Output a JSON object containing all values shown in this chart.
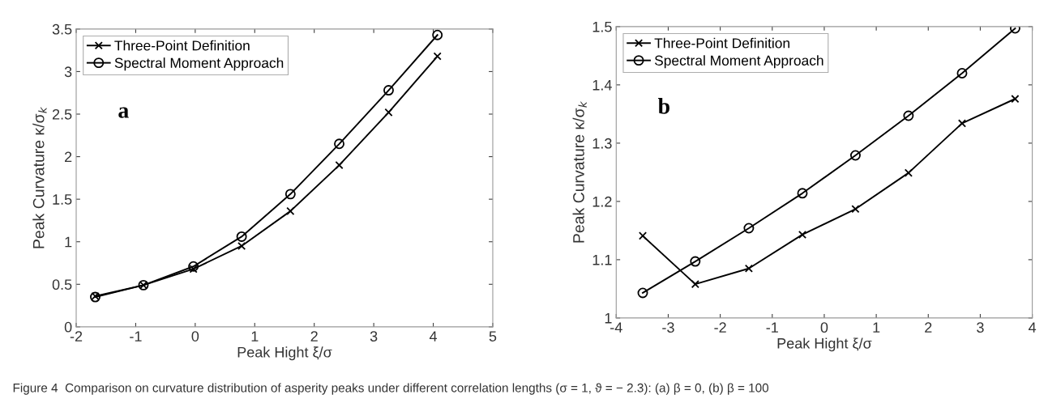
{
  "chart_data": [
    {
      "type": "line",
      "xlabel": "Peak Hight ξ/σ",
      "ylabel": "Peak Curvature κ/σ$_{k}$",
      "xlim": [
        -2,
        5
      ],
      "xticks": [
        -2,
        -1,
        0,
        1,
        2,
        3,
        4,
        5
      ],
      "ylim": [
        0,
        3.5
      ],
      "yticks": [
        0,
        0.5,
        1,
        1.5,
        2,
        2.5,
        3,
        3.5
      ],
      "grid": false,
      "legend": "top left",
      "line_style": "solid",
      "annotations": [
        "a",
        "Figure 4  Comparison on curvature distribution of asperity peaks under different correlation lengths (σ = 1, ϑ = − 2.3): (a) β = 0, (b) β = 100"
      ],
      "series": [
        {
          "name": "Three-Point Definition",
          "color": "#000000",
          "marker": "cross",
          "x": [
            -1.68,
            -0.87,
            -0.03,
            0.78,
            1.6,
            2.42,
            3.25,
            4.07
          ],
          "values": [
            0.36,
            0.49,
            0.68,
            0.95,
            1.36,
            1.9,
            2.52,
            3.18
          ]
        },
        {
          "name": "Spectral Moment Approach",
          "color": "#000000",
          "marker": "circle",
          "x": [
            -1.68,
            -0.87,
            -0.03,
            0.78,
            1.6,
            2.42,
            3.25,
            4.07
          ],
          "values": [
            0.35,
            0.49,
            0.71,
            1.06,
            1.56,
            2.15,
            2.78,
            3.43
          ]
        }
      ]
    },
    {
      "type": "line",
      "xlabel": "Peak Hight ξ/σ",
      "ylabel": "Peak Curvature κ/σ$_{k}$",
      "xlim": [
        -4,
        4
      ],
      "xticks": [
        -4,
        -3,
        -2,
        -1,
        0,
        1,
        2,
        3,
        4
      ],
      "ylim": [
        1,
        1.5
      ],
      "yticks": [
        1,
        1.1,
        1.2,
        1.3,
        1.4,
        1.5
      ],
      "grid": false,
      "legend": "top left",
      "line_style": "solid",
      "annotations": [
        "b"
      ],
      "series": [
        {
          "name": "Three-Point Definition",
          "color": "#000000",
          "marker": "cross",
          "x": [
            -3.49,
            -2.48,
            -1.45,
            -0.42,
            0.6,
            1.62,
            2.65,
            3.67
          ],
          "values": [
            1.141,
            1.058,
            1.085,
            1.143,
            1.187,
            1.249,
            1.334,
            1.376
          ]
        },
        {
          "name": "Spectral Moment Approach",
          "color": "#000000",
          "marker": "circle",
          "x": [
            -3.49,
            -2.48,
            -1.45,
            -0.42,
            0.6,
            1.62,
            2.65,
            3.67
          ],
          "values": [
            1.043,
            1.097,
            1.154,
            1.214,
            1.279,
            1.347,
            1.42,
            1.497
          ]
        }
      ]
    }
  ]
}
